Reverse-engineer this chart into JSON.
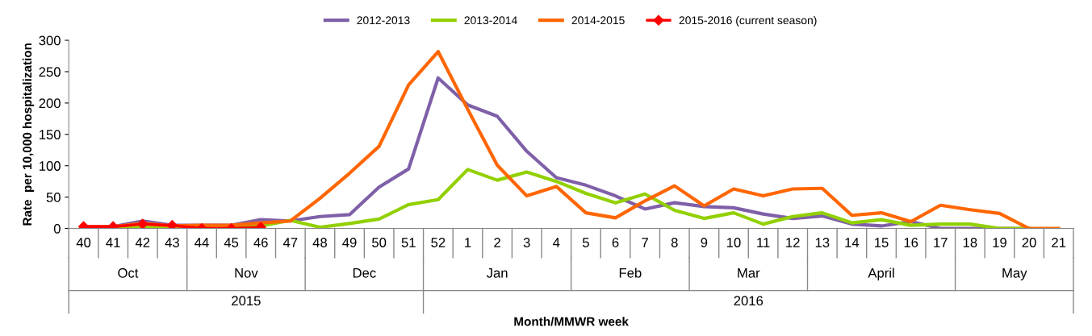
{
  "chart_data": {
    "type": "line",
    "ylabel": "Rate  per 10,000 hospitalization",
    "categories": [
      "40",
      "41",
      "42",
      "43",
      "44",
      "45",
      "46",
      "47",
      "48",
      "49",
      "50",
      "51",
      "52",
      "1",
      "2",
      "3",
      "4",
      "5",
      "6",
      "7",
      "8",
      "9",
      "10",
      "11",
      "12",
      "13",
      "14",
      "15",
      "16",
      "17",
      "18",
      "19",
      "20",
      "21"
    ],
    "series": [
      {
        "name": "2012-2013",
        "color": "#7f60a8",
        "marker": "none",
        "values": [
          3,
          3,
          12,
          5,
          5,
          5,
          14,
          12,
          19,
          22,
          66,
          95,
          240,
          197,
          179,
          123,
          81,
          69,
          52,
          31,
          41,
          35,
          33,
          23,
          16,
          20,
          7,
          4,
          11,
          0,
          0,
          0,
          0,
          null
        ]
      },
      {
        "name": "2013-2014",
        "color": "#92d000",
        "marker": "none",
        "values": [
          0,
          0,
          2,
          1,
          2,
          2,
          4,
          13,
          2,
          8,
          15,
          38,
          46,
          94,
          77,
          90,
          75,
          56,
          41,
          55,
          29,
          16,
          25,
          7,
          19,
          25,
          9,
          14,
          5,
          7,
          7,
          0,
          0,
          null
        ]
      },
      {
        "name": "2014-2015",
        "color": "#ff6600",
        "marker": "none",
        "values": [
          3,
          3,
          8,
          4,
          5,
          5,
          9,
          12,
          48,
          88,
          131,
          229,
          282,
          190,
          101,
          52,
          67,
          25,
          17,
          44,
          68,
          36,
          63,
          52,
          63,
          64,
          21,
          25,
          11,
          37,
          30,
          24,
          0,
          0
        ]
      },
      {
        "name": "2015-2016 (current season)",
        "color": "#ff0000",
        "marker": "diamond",
        "values": [
          3,
          3,
          7,
          5,
          0,
          0,
          2,
          null,
          null,
          null,
          null,
          null,
          null,
          null,
          null,
          null,
          null,
          null,
          null,
          null,
          null,
          null,
          null,
          null,
          null,
          null,
          null,
          null,
          null,
          null,
          null,
          null,
          null,
          null
        ]
      }
    ],
    "annotations": [
      "Oct",
      "Nov",
      "Dec",
      "Jan",
      "Feb",
      "Mar",
      "April",
      "May",
      "2015",
      "2016",
      "Month/MMWR week"
    ],
    "ylim": [
      0,
      300
    ],
    "yticks": [
      0,
      50,
      100,
      150,
      200,
      250,
      300
    ],
    "grid": false,
    "legend": "top",
    "line_style": "solid"
  }
}
